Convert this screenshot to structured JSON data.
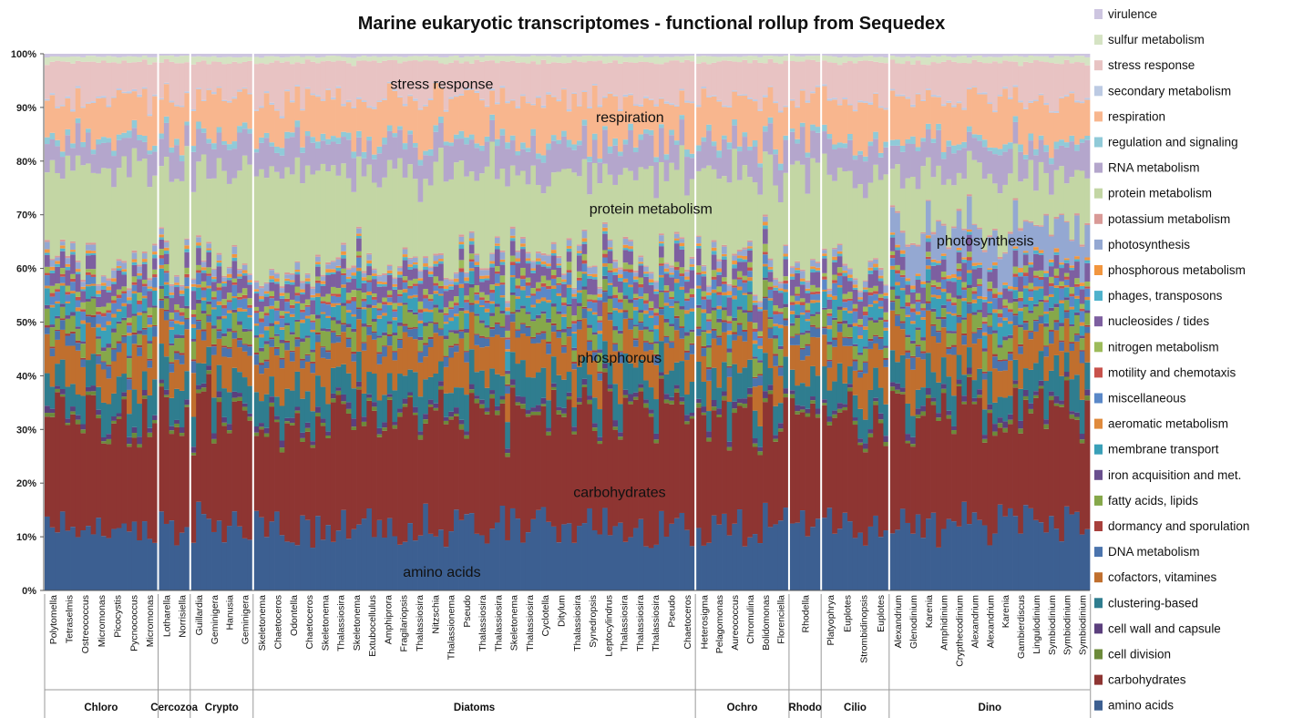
{
  "chart_data": {
    "type": "bar",
    "stacked": true,
    "normalized": true,
    "title": "Marine eukaryotic transcriptomes - functional rollup from Sequedex",
    "ylim": [
      0,
      100
    ],
    "yticks": [
      "0%",
      "10%",
      "20%",
      "30%",
      "40%",
      "50%",
      "60%",
      "70%",
      "80%",
      "90%",
      "100%"
    ],
    "legend_position": "right",
    "groups": [
      {
        "name": "Chloro",
        "bars": 22,
        "labels": [
          "Polytomella",
          "Tetraselmis",
          "Ostreococcus",
          "Micromonas",
          "Picocystis",
          "Pycnococcus",
          "Micromonas"
        ]
      },
      {
        "name": "Cercozoa",
        "bars": 6,
        "labels": [
          "Lotharella",
          "Norrisiella"
        ]
      },
      {
        "name": "Crypto",
        "bars": 12,
        "labels": [
          "Guillardia",
          "Geminigera",
          "Hanusia",
          "Geminigera"
        ]
      },
      {
        "name": "Diatoms",
        "bars": 86,
        "labels": [
          "Skeletonema",
          "Chaetoceros",
          "Odontella",
          "Chaetoceros",
          "Skeletonema",
          "Thalassiosira",
          "Skeletonema",
          "Extubocellulus",
          "Amphiprora",
          "Fragilariopsis",
          "Thalassiosira",
          "Nitzschia",
          "Thalassionema",
          "Pseudo",
          "Thalassiosira",
          "Thalassiosira",
          "Skeletonema",
          "Thalassiosira",
          "Cyclotella",
          "Ditylum",
          "Thalassiosira",
          "Synedropsis",
          "Leptocylindrus",
          "Thalassiosira",
          "Thalassiosira",
          "Thalassiosira",
          "Pseudo",
          "Chaetoceros"
        ]
      },
      {
        "name": "Ochro",
        "bars": 18,
        "labels": [
          "Heterosigma",
          "Pelagomonas",
          "Aureococcus",
          "Chromulina",
          "Bolidomonas",
          "Florenciella"
        ]
      },
      {
        "name": "Rhodo",
        "bars": 6,
        "labels": [
          "Rhodella"
        ]
      },
      {
        "name": "Cilio",
        "bars": 13,
        "labels": [
          "Platyophrya",
          "Euplotes",
          "Strombidinopsis",
          "Euplotes"
        ]
      },
      {
        "name": "Dino",
        "bars": 39,
        "labels": [
          "Alexandrium",
          "Glenodinium",
          "Karenia",
          "Amphidinium",
          "Crypthecodinium",
          "Alexandrium",
          "Alexandrium",
          "Karenia",
          "Gambierdiscus",
          "Lingulodinium",
          "Symbiodinium",
          "Symbiodinium",
          "Symbiodinium"
        ]
      }
    ],
    "series": [
      {
        "name": "amino acids",
        "color": "#3c5f91",
        "typical_percent": 11.5
      },
      {
        "name": "carbohydrates",
        "color": "#8e3532",
        "typical_percent": 20
      },
      {
        "name": "cell division",
        "color": "#6c8a3a",
        "typical_percent": 0.6
      },
      {
        "name": "cell wall and capsule",
        "color": "#5b3f7d",
        "typical_percent": 0.9
      },
      {
        "name": "clustering-based",
        "color": "#2f7d8f",
        "typical_percent": 5
      },
      {
        "name": "cofactors, vitamines",
        "color": "#c06f2e",
        "typical_percent": 6
      },
      {
        "name": "DNA metabolism",
        "color": "#4b74ad",
        "typical_percent": 1.5
      },
      {
        "name": "dormancy and sporulation",
        "color": "#a8403c",
        "typical_percent": 0.3
      },
      {
        "name": "fatty acids, lipids",
        "color": "#86a84a",
        "typical_percent": 2.5
      },
      {
        "name": "iron acquisition and met.",
        "color": "#6a4f8e",
        "typical_percent": 0.5
      },
      {
        "name": "membrane transport",
        "color": "#3aa0b8",
        "typical_percent": 2.5
      },
      {
        "name": "aeromatic metabolism",
        "color": "#e08a3c",
        "typical_percent": 0.5
      },
      {
        "name": "miscellaneous",
        "color": "#5a88c8",
        "typical_percent": 1.5
      },
      {
        "name": "motility and chemotaxis",
        "color": "#c8524c",
        "typical_percent": 0.5
      },
      {
        "name": "nitrogen metabolism",
        "color": "#9dbb5a",
        "typical_percent": 1
      },
      {
        "name": "nucleosides / tides",
        "color": "#7d5fa0",
        "typical_percent": 2.5
      },
      {
        "name": "phages, transposons",
        "color": "#4fb2cc",
        "typical_percent": 0.5
      },
      {
        "name": "phosphorous metabolism",
        "color": "#f2963f",
        "typical_percent": 0.5
      },
      {
        "name": "photosynthesis",
        "color": "#94a8d2",
        "typical_percent": 1
      },
      {
        "name": "potassium metabolism",
        "color": "#d99a97",
        "typical_percent": 0.3
      },
      {
        "name": "protein metabolism",
        "color": "#c3d6a4",
        "typical_percent": 16
      },
      {
        "name": "RNA metabolism",
        "color": "#b4a6cc",
        "typical_percent": 5
      },
      {
        "name": "regulation and signaling",
        "color": "#90cad8",
        "typical_percent": 1
      },
      {
        "name": "respiration",
        "color": "#f8b68e",
        "typical_percent": 7
      },
      {
        "name": "secondary metabolism",
        "color": "#bccae3",
        "typical_percent": 0.3
      },
      {
        "name": "stress response",
        "color": "#e8c3c3",
        "typical_percent": 6.5
      },
      {
        "name": "sulfur metabolism",
        "color": "#d5e3c3",
        "typical_percent": 1
      },
      {
        "name": "virulence",
        "color": "#cdc5e0",
        "typical_percent": 0.5
      }
    ],
    "annotations": [
      "stress response",
      "respiration",
      "protein metabolism",
      "photosynthesis",
      "phosphorous",
      "carbohydrates",
      "amino acids"
    ]
  }
}
